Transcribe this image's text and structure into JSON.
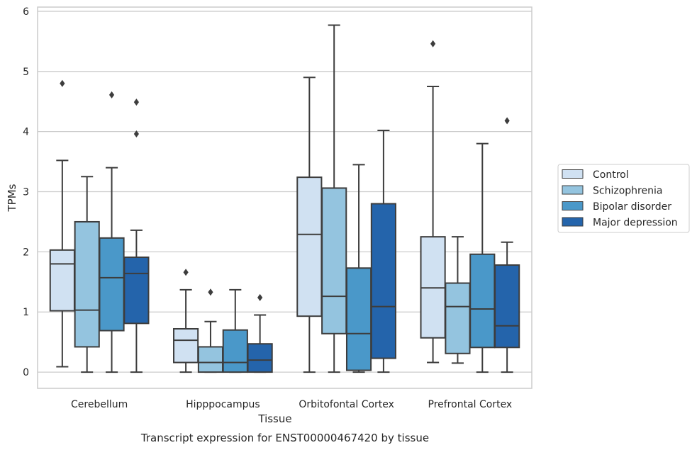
{
  "caption": "Transcript expression for ENST00000467420 by tissue",
  "chart_data": {
    "type": "box",
    "xlabel": "Tissue",
    "ylabel": "TPMs",
    "ylim": [
      -0.27,
      6.07
    ],
    "yticks": [
      0,
      1,
      2,
      3,
      4,
      5,
      6
    ],
    "grid": true,
    "legend_position": "right",
    "categories": [
      "Cerebellum",
      "Hipppocampus",
      "Orbitofontal Cortex",
      "Prefrontal Cortex"
    ],
    "series": [
      {
        "name": "Control",
        "color": "#d0e1f2",
        "boxes": [
          {
            "whislo": 0.09,
            "q1": 1.02,
            "med": 1.8,
            "q3": 2.03,
            "whishi": 3.52,
            "fliers": [
              4.8
            ]
          },
          {
            "whislo": 0.0,
            "q1": 0.16,
            "med": 0.53,
            "q3": 0.72,
            "whishi": 1.37,
            "fliers": [
              1.66
            ]
          },
          {
            "whislo": 0.0,
            "q1": 0.93,
            "med": 2.29,
            "q3": 3.24,
            "whishi": 4.9,
            "fliers": []
          },
          {
            "whislo": 0.16,
            "q1": 0.57,
            "med": 1.4,
            "q3": 2.25,
            "whishi": 4.75,
            "fliers": [
              5.46
            ]
          }
        ]
      },
      {
        "name": "Schizophrenia",
        "color": "#94c4df",
        "boxes": [
          {
            "whislo": 0.0,
            "q1": 0.42,
            "med": 1.03,
            "q3": 2.5,
            "whishi": 3.25,
            "fliers": []
          },
          {
            "whislo": 0.0,
            "q1": 0.0,
            "med": 0.16,
            "q3": 0.42,
            "whishi": 0.84,
            "fliers": [
              1.33
            ]
          },
          {
            "whislo": 0.0,
            "q1": 0.64,
            "med": 1.26,
            "q3": 3.06,
            "whishi": 5.77,
            "fliers": []
          },
          {
            "whislo": 0.15,
            "q1": 0.31,
            "med": 1.09,
            "q3": 1.48,
            "whishi": 2.25,
            "fliers": []
          }
        ]
      },
      {
        "name": "Bipolar disorder",
        "color": "#4a98c9",
        "boxes": [
          {
            "whislo": 0.0,
            "q1": 0.69,
            "med": 1.57,
            "q3": 2.23,
            "whishi": 3.4,
            "fliers": [
              4.61
            ]
          },
          {
            "whislo": 0.0,
            "q1": 0.0,
            "med": 0.16,
            "q3": 0.7,
            "whishi": 1.37,
            "fliers": []
          },
          {
            "whislo": 0.0,
            "q1": 0.03,
            "med": 0.64,
            "q3": 1.73,
            "whishi": 3.45,
            "fliers": []
          },
          {
            "whislo": 0.0,
            "q1": 0.41,
            "med": 1.05,
            "q3": 1.96,
            "whishi": 3.8,
            "fliers": []
          }
        ]
      },
      {
        "name": "Major depression",
        "color": "#2464ab",
        "boxes": [
          {
            "whislo": 0.0,
            "q1": 0.81,
            "med": 1.64,
            "q3": 1.91,
            "whishi": 2.36,
            "fliers": [
              3.96,
              4.49
            ]
          },
          {
            "whislo": 0.0,
            "q1": 0.0,
            "med": 0.2,
            "q3": 0.47,
            "whishi": 0.95,
            "fliers": [
              1.24
            ]
          },
          {
            "whislo": 0.0,
            "q1": 0.23,
            "med": 1.09,
            "q3": 2.8,
            "whishi": 4.02,
            "fliers": []
          },
          {
            "whislo": 0.0,
            "q1": 0.41,
            "med": 0.77,
            "q3": 1.78,
            "whishi": 2.16,
            "fliers": [
              4.18
            ]
          }
        ]
      }
    ]
  }
}
